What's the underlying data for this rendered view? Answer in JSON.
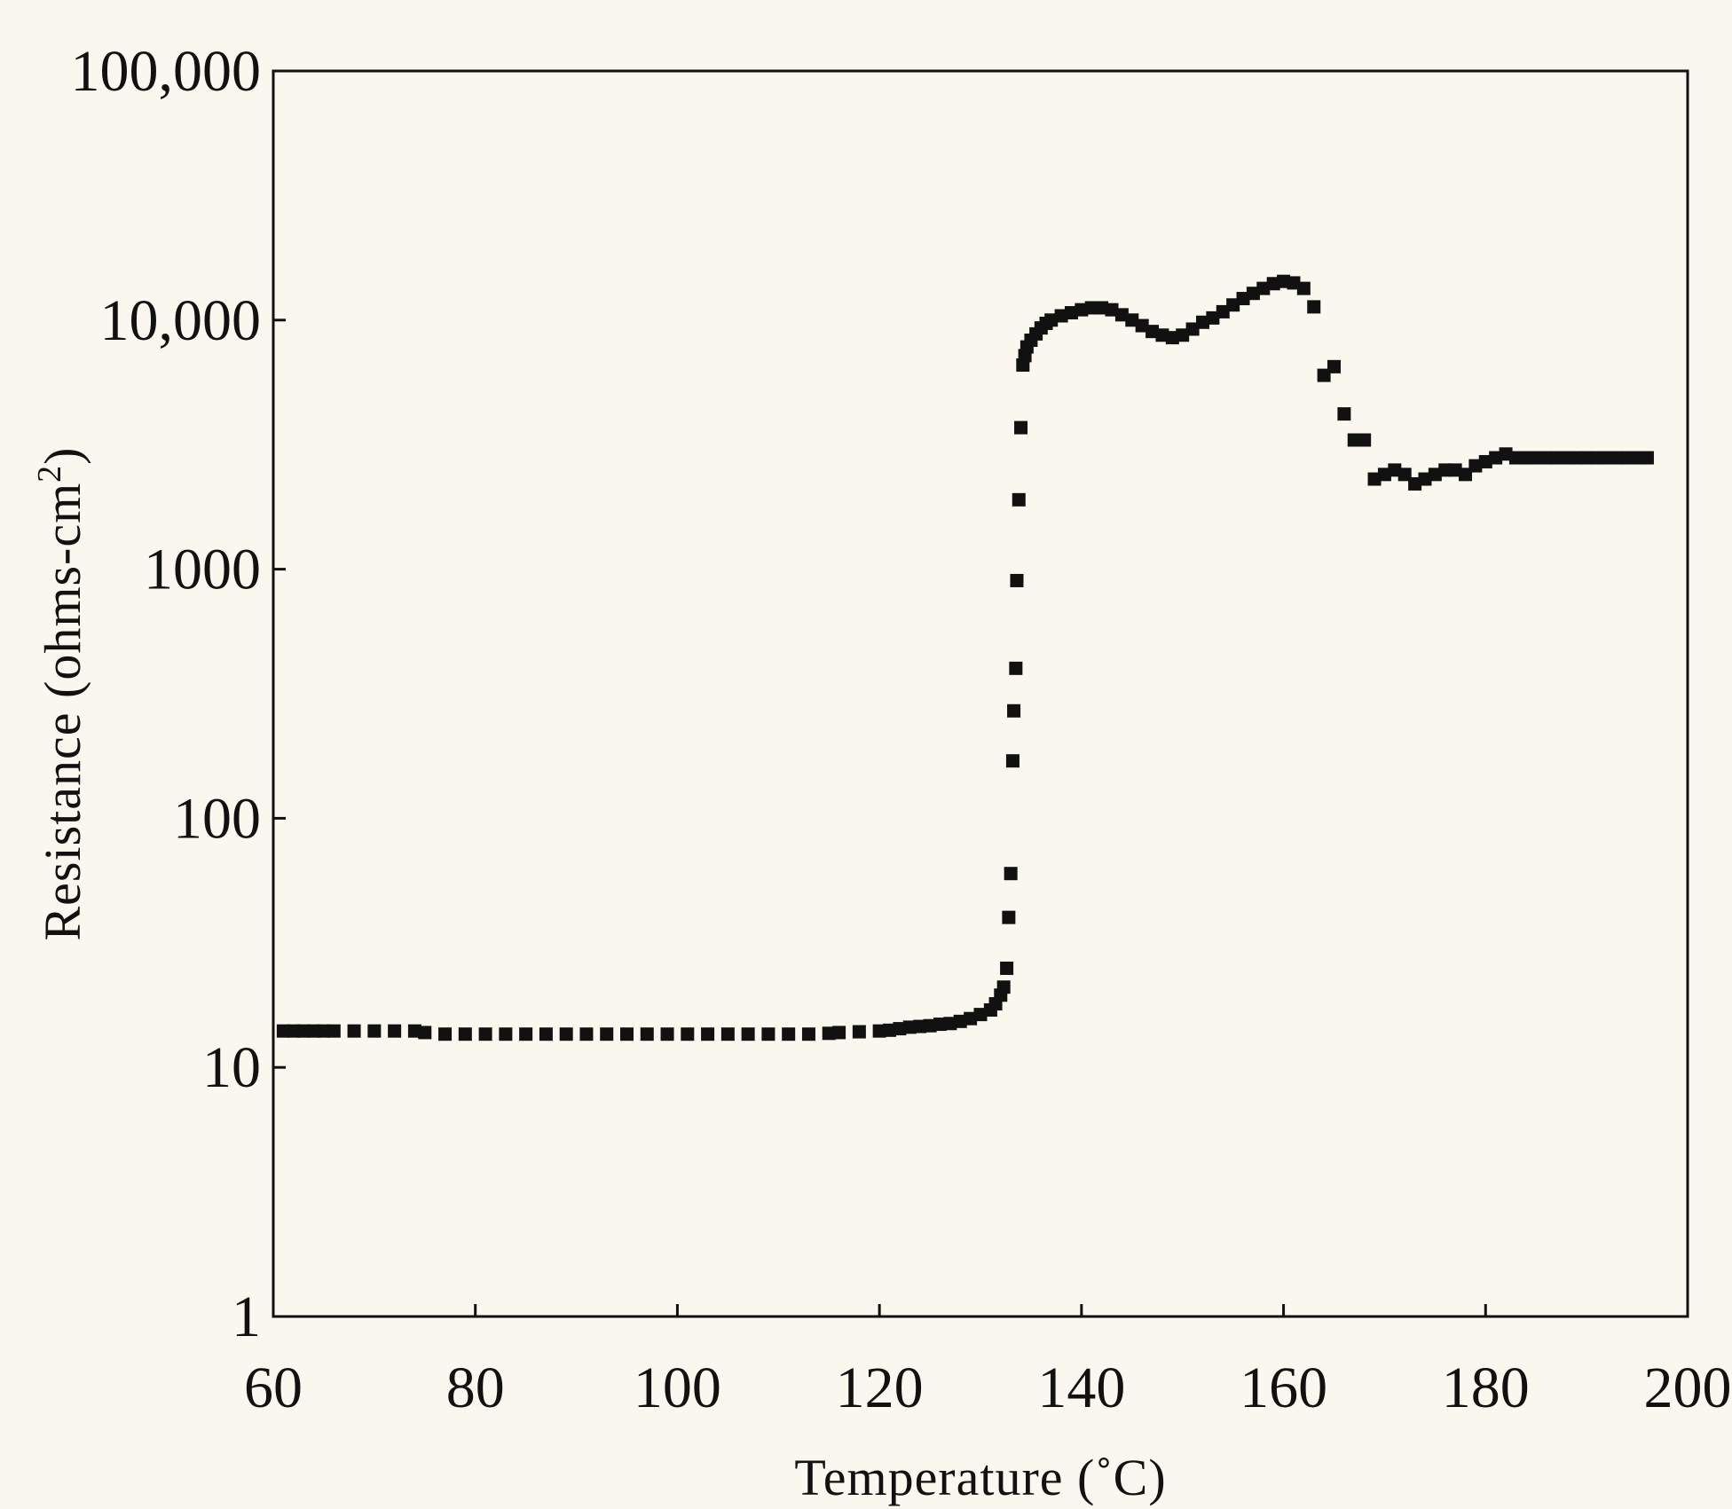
{
  "chart_data": {
    "type": "scatter",
    "title": "",
    "xlabel": "Temperature (˚C)",
    "ylabel_main": "Resistance (ohms-cm",
    "ylabel_sup": "2",
    "ylabel_tail": ")",
    "xlim": [
      60,
      200
    ],
    "ylim": [
      1,
      100000
    ],
    "yscale": "log",
    "xticks": [
      60,
      80,
      100,
      120,
      140,
      160,
      180,
      200
    ],
    "xtick_labels": [
      "60",
      "80",
      "100",
      "120",
      "140",
      "160",
      "180",
      "200"
    ],
    "yticks": [
      1,
      10,
      100,
      1000,
      10000,
      100000
    ],
    "ytick_labels": [
      "1",
      "10",
      "100",
      "1000",
      "10,000",
      "100,000"
    ],
    "grid": false,
    "legend": "none",
    "marker": "square",
    "color": "#111111",
    "series": [
      {
        "x": [
          61,
          62,
          63,
          64,
          65,
          66,
          68,
          70,
          72,
          74,
          75,
          77,
          79,
          81,
          83,
          85,
          87,
          89,
          91,
          93,
          95,
          97,
          99,
          101,
          103,
          105,
          107,
          109,
          111,
          113,
          115,
          116,
          118,
          120,
          121,
          122,
          123,
          124,
          125,
          126,
          127,
          128,
          129,
          130,
          131,
          131.5,
          132,
          132.3,
          132.6,
          132.8,
          133,
          133.2,
          133.3,
          133.5,
          133.6,
          133.8,
          134,
          134.2,
          134.4,
          134.6,
          135,
          135.5,
          136,
          136.5,
          137,
          138,
          139,
          140,
          141,
          142,
          143,
          144,
          145,
          146,
          147,
          148,
          149,
          150,
          151,
          152,
          153,
          154,
          155,
          156,
          157,
          158,
          159,
          160,
          161,
          162,
          163,
          164,
          165,
          166,
          167,
          168,
          169,
          170,
          171,
          172,
          173,
          174,
          175,
          176,
          177,
          178,
          179,
          180,
          181,
          182,
          183,
          184,
          185,
          186,
          187,
          188,
          189,
          190,
          191,
          192,
          193,
          194,
          195,
          196
        ],
        "y": [
          14,
          14,
          14,
          14,
          14,
          14,
          14,
          14,
          14,
          14,
          13.8,
          13.6,
          13.6,
          13.6,
          13.6,
          13.6,
          13.6,
          13.6,
          13.6,
          13.6,
          13.6,
          13.6,
          13.6,
          13.6,
          13.6,
          13.6,
          13.6,
          13.6,
          13.6,
          13.6,
          13.7,
          13.8,
          13.9,
          14,
          14.1,
          14.3,
          14.5,
          14.6,
          14.7,
          14.9,
          15,
          15.3,
          15.7,
          16.3,
          17,
          18,
          19.5,
          21,
          25,
          40,
          60,
          170,
          270,
          400,
          900,
          1900,
          3700,
          6600,
          7200,
          7800,
          8300,
          8800,
          9300,
          9700,
          10000,
          10400,
          10700,
          11000,
          11200,
          11200,
          11000,
          10500,
          10000,
          9500,
          9000,
          8700,
          8500,
          8700,
          9200,
          9800,
          10200,
          10800,
          11500,
          12200,
          12800,
          13400,
          14000,
          14300,
          14100,
          13400,
          11300,
          6000,
          6500,
          4200,
          3300,
          3300,
          2300,
          2400,
          2500,
          2400,
          2200,
          2300,
          2400,
          2500,
          2500,
          2400,
          2600,
          2700,
          2800,
          2900,
          2800,
          2800,
          2800,
          2800,
          2800,
          2800,
          2800,
          2800,
          2800,
          2800,
          2800,
          2800,
          2800,
          2800
        ]
      }
    ]
  }
}
